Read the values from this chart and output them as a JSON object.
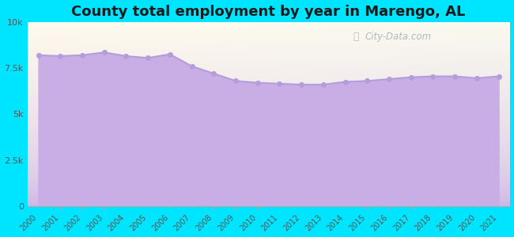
{
  "title": "County total employment by year in Marengo, AL",
  "years": [
    2000,
    2001,
    2002,
    2003,
    2004,
    2005,
    2006,
    2007,
    2008,
    2009,
    2010,
    2011,
    2012,
    2013,
    2014,
    2015,
    2016,
    2017,
    2018,
    2019,
    2020,
    2021
  ],
  "values": [
    8200,
    8150,
    8200,
    8350,
    8150,
    8050,
    8250,
    7600,
    7200,
    6800,
    6700,
    6650,
    6600,
    6600,
    6750,
    6800,
    6900,
    7000,
    7050,
    7050,
    6950,
    7050
  ],
  "line_color": "#b39ddb",
  "fill_color": "#c9aee6",
  "marker_color": "#b39ddb",
  "bg_color": "#00e5ff",
  "plot_bg_color": "#c9aee6",
  "title_fontsize": 13,
  "title_color": "#1a1a1a",
  "ylim": [
    0,
    10000
  ],
  "yticks": [
    0,
    2500,
    5000,
    7500,
    10000
  ],
  "ytick_labels": [
    "0",
    "2.5k",
    "5k",
    "7.5k",
    "10k"
  ],
  "watermark": "City-Data.com",
  "watermark_color": "#a0aab4"
}
